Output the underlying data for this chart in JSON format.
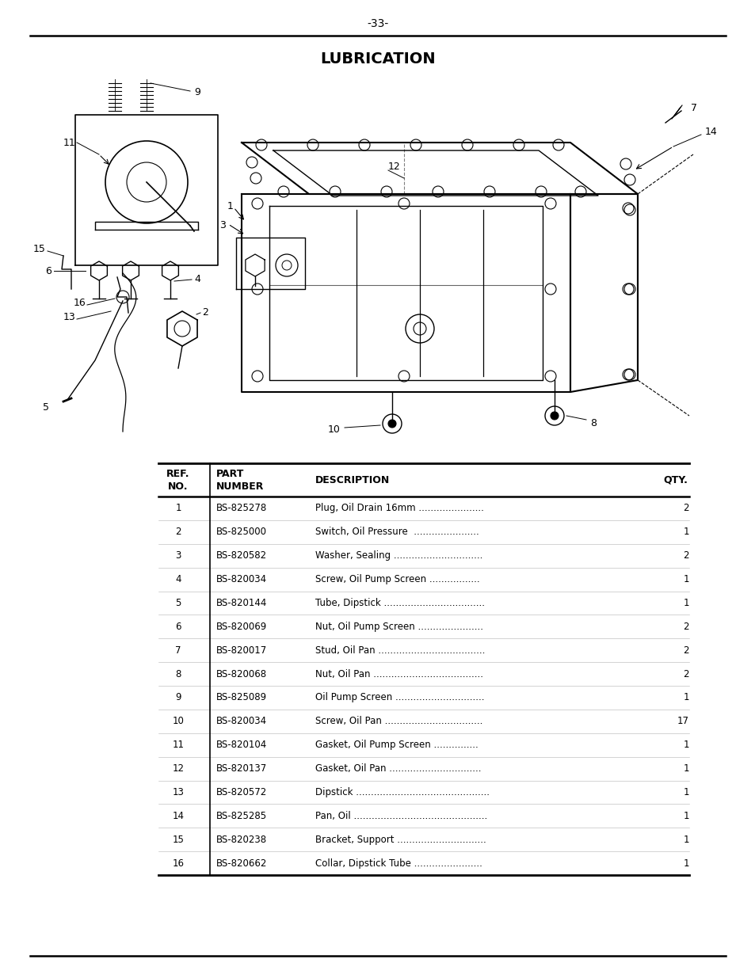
{
  "page_number": "-33-",
  "title": "LUBRICATION",
  "bg_color": "#ffffff",
  "table_rows": [
    [
      "1",
      "BS-825278",
      "Plug, Oil Drain 16mm ......................",
      "2"
    ],
    [
      "2",
      "BS-825000",
      "Switch, Oil Pressure  ......................",
      "1"
    ],
    [
      "3",
      "BS-820582",
      "Washer, Sealing ..............................",
      "2"
    ],
    [
      "4",
      "BS-820034",
      "Screw, Oil Pump Screen .................",
      "1"
    ],
    [
      "5",
      "BS-820144",
      "Tube, Dipstick ..................................",
      "1"
    ],
    [
      "6",
      "BS-820069",
      "Nut, Oil Pump Screen ......................",
      "2"
    ],
    [
      "7",
      "BS-820017",
      "Stud, Oil Pan ....................................",
      "2"
    ],
    [
      "8",
      "BS-820068",
      "Nut, Oil Pan .....................................",
      "2"
    ],
    [
      "9",
      "BS-825089",
      "Oil Pump Screen ..............................",
      "1"
    ],
    [
      "10",
      "BS-820034",
      "Screw, Oil Pan .................................",
      "17"
    ],
    [
      "11",
      "BS-820104",
      "Gasket, Oil Pump Screen ...............",
      "1"
    ],
    [
      "12",
      "BS-820137",
      "Gasket, Oil Pan ...............................",
      "1"
    ],
    [
      "13",
      "BS-820572",
      "Dipstick .............................................",
      "1"
    ],
    [
      "14",
      "BS-825285",
      "Pan, Oil .............................................",
      "1"
    ],
    [
      "15",
      "BS-820238",
      "Bracket, Support ..............................",
      "1"
    ],
    [
      "16",
      "BS-820662",
      "Collar, Dipstick Tube .......................",
      "1"
    ]
  ]
}
